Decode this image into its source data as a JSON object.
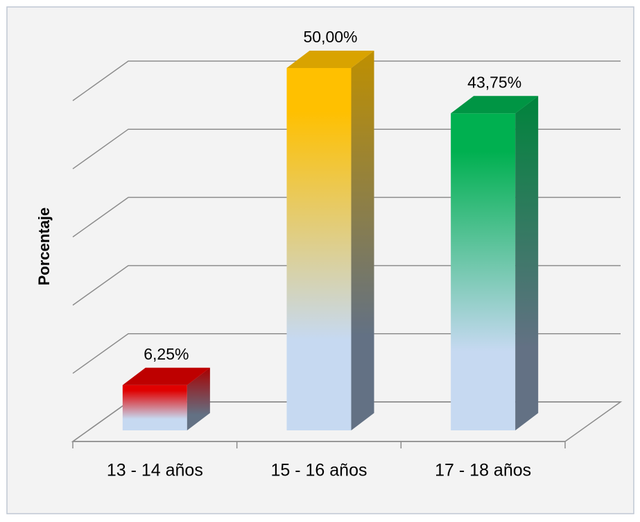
{
  "chart_data": {
    "type": "bar3d",
    "y_label": "Porcentaje",
    "categories": [
      "13 - 14 años",
      "15 - 16 años",
      "17 - 18 años"
    ],
    "values": [
      6.25,
      50,
      43.75
    ],
    "value_labels": [
      "6,25%",
      "50,00%",
      "43,75%"
    ],
    "colors": [
      "#e00000",
      "#ffc000",
      "#00b050"
    ],
    "ylim": [
      0,
      50
    ],
    "yticks": [
      0,
      10,
      20,
      30,
      40,
      50
    ],
    "grid": true
  }
}
